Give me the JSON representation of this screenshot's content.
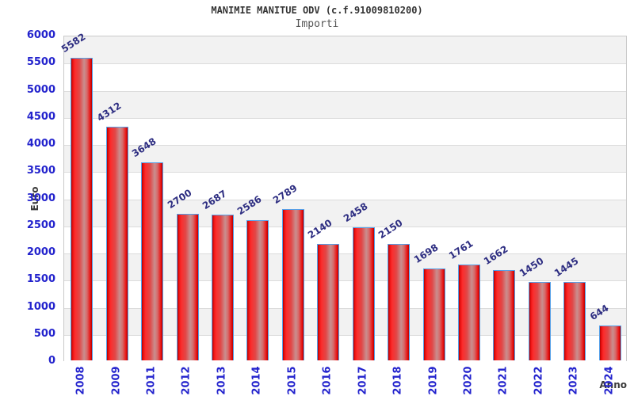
{
  "chart_data": {
    "type": "bar",
    "title": "MANIMIE MANITUE ODV (c.f.91009810200)",
    "subtitle": "Importi",
    "xlabel": "Anno",
    "ylabel": "Euro",
    "categories": [
      "2008",
      "2009",
      "2011",
      "2012",
      "2013",
      "2014",
      "2015",
      "2016",
      "2017",
      "2018",
      "2019",
      "2020",
      "2021",
      "2022",
      "2023",
      "2024"
    ],
    "values": [
      5582,
      4312,
      3648,
      2700,
      2687,
      2586,
      2789,
      2140,
      2458,
      2150,
      1698,
      1761,
      1662,
      1450,
      1445,
      644
    ],
    "ylim": [
      0,
      6000
    ],
    "y_ticks": [
      0,
      500,
      1000,
      1500,
      2000,
      2500,
      3000,
      3500,
      4000,
      4500,
      5000,
      5500,
      6000
    ],
    "grid": "horizontal-bands",
    "legend": false,
    "colors": {
      "bar_fill": "#ee1414",
      "bar_highlight": "#c98f8f",
      "bar_border": "#55a0e8",
      "tick_label": "#2323cd",
      "value_label": "#2e2e82",
      "band_gray": "#f2f2f2",
      "band_white": "#ffffff",
      "grid_line": "#dcdcdc",
      "plot_border": "#c9c9c9",
      "title_color": "#333333",
      "subtitle_color": "#555555",
      "axis_name_color": "#3a3a3a"
    }
  }
}
